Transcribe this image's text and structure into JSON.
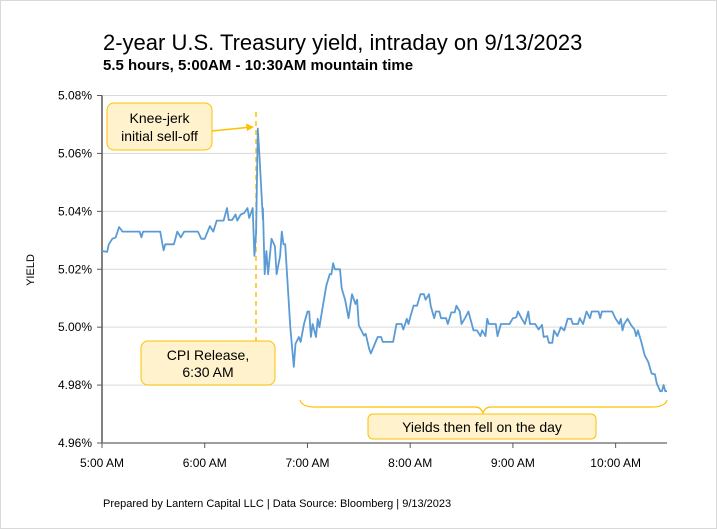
{
  "chart_data": {
    "type": "line",
    "title": "2-year U.S. Treasury yield, intraday on 9/13/2023",
    "subtitle": "5.5 hours, 5:00AM - 10:30AM mountain time",
    "ylabel": "YIELD",
    "xlabel": "",
    "ylim": [
      4.96,
      5.08
    ],
    "xlim": [
      "5:00",
      "10:30"
    ],
    "grid": true,
    "yticks": [
      "4.96%",
      "4.98%",
      "5.00%",
      "5.02%",
      "5.04%",
      "5.06%",
      "5.08%"
    ],
    "xticks": [
      "5:00 AM",
      "6:00 AM",
      "7:00 AM",
      "8:00 AM",
      "9:00 AM",
      "10:00 AM"
    ],
    "line_color": "#5b9bd5",
    "annotation_color": "#ffc000",
    "annotation_fill": "#fff2cc",
    "annotations": {
      "knee_jerk": [
        "Knee-jerk",
        "initial sell-off"
      ],
      "cpi_release": [
        "CPI Release,",
        "6:30 AM"
      ],
      "fell": "Yields then fell on the day"
    },
    "footer": "Prepared by Lantern Capital LLC | Data Source: Bloomberg | 9/13/2023",
    "series": [
      {
        "x": [
          "5:00",
          "5:03",
          "5:04",
          "5:06",
          "5:08",
          "5:10",
          "5:12",
          "5:22",
          "5:23",
          "5:24",
          "5:34",
          "5:36",
          "5:37",
          "5:42",
          "5:44",
          "5:46",
          "5:48",
          "5:56",
          "5:58",
          "6:00",
          "6:03",
          "6:05",
          "6:07",
          "6:08",
          "6:11",
          "6:13",
          "6:14",
          "6:16",
          "6:18",
          "6:19",
          "6:21",
          "6:23",
          "6:25",
          "6:26",
          "6:28",
          "6:29",
          "6:30",
          "6:31",
          "6:32",
          "6:34",
          "6:34",
          "6:35",
          "6:36",
          "6:37",
          "6:39",
          "6:41",
          "6:42",
          "6:44",
          "6:45",
          "6:46",
          "6:47",
          "6:50",
          "6:52",
          "6:53",
          "6:55",
          "6:56",
          "6:58",
          "7:00",
          "7:01",
          "7:02",
          "7:03",
          "7:05",
          "7:06",
          "7:07",
          "7:09",
          "7:11",
          "7:13",
          "7:14",
          "7:15",
          "7:16",
          "7:19",
          "7:20",
          "7:22",
          "7:24",
          "7:26",
          "7:28",
          "7:29",
          "7:30",
          "7:33",
          "7:34",
          "7:36",
          "7:37",
          "7:39",
          "7:41",
          "7:43",
          "7:44",
          "7:50",
          "7:52",
          "7:55",
          "7:56",
          "7:58",
          "7:59",
          "8:00",
          "8:02",
          "8:04",
          "8:06",
          "8:08",
          "8:09",
          "8:11",
          "8:12",
          "8:14",
          "8:15",
          "8:17",
          "8:18",
          "8:21",
          "8:22",
          "8:24",
          "8:26",
          "8:27",
          "8:29",
          "8:30",
          "8:32",
          "8:34",
          "8:36",
          "8:37",
          "8:39",
          "8:41",
          "8:42",
          "8:44",
          "8:45",
          "8:46",
          "8:50",
          "8:51",
          "8:53",
          "8:58",
          "9:00",
          "9:02",
          "9:03",
          "9:05",
          "9:07",
          "9:09",
          "9:10",
          "9:13",
          "9:15",
          "9:17",
          "9:18",
          "9:20",
          "9:21",
          "9:23",
          "9:24",
          "9:26",
          "9:28",
          "9:30",
          "9:32",
          "9:34",
          "9:35",
          "9:38",
          "9:39",
          "9:41",
          "9:43",
          "9:45",
          "9:46",
          "9:50",
          "9:51",
          "9:52",
          "9:58",
          "10:00",
          "10:02",
          "10:03",
          "10:04",
          "10:05",
          "10:07",
          "10:09",
          "10:11",
          "10:12",
          "10:13",
          "10:15",
          "10:17",
          "10:19",
          "10:21",
          "10:23",
          "10:24",
          "10:26",
          "10:27",
          "10:28",
          "10:29",
          "10:30"
        ],
        "y": [
          5.0263,
          5.026,
          5.0286,
          5.0305,
          5.031,
          5.0346,
          5.033,
          5.033,
          5.031,
          5.033,
          5.033,
          5.0265,
          5.0286,
          5.0286,
          5.033,
          5.031,
          5.033,
          5.033,
          5.0305,
          5.0305,
          5.0349,
          5.033,
          5.0368,
          5.0368,
          5.0368,
          5.0411,
          5.037,
          5.037,
          5.0389,
          5.0368,
          5.0389,
          5.0394,
          5.0411,
          5.0377,
          5.0411,
          5.0246,
          5.0326,
          5.0686,
          5.0589,
          5.0371,
          5.0411,
          5.0183,
          5.0263,
          5.0183,
          5.0305,
          5.028,
          5.0183,
          5.0246,
          5.033,
          5.0286,
          5.0286,
          5.0,
          4.9863,
          4.9943,
          4.9966,
          4.9949,
          5.0011,
          5.0054,
          5.0054,
          4.9966,
          5.0011,
          4.9966,
          5.0029,
          5.0,
          5.0074,
          5.0143,
          5.0183,
          5.0183,
          5.0221,
          5.02,
          5.02,
          5.0134,
          5.0095,
          5.0031,
          5.0114,
          5.008,
          5.0095,
          5.0006,
          4.9971,
          4.9977,
          4.9926,
          4.9909,
          4.9937,
          4.9966,
          4.9966,
          4.9949,
          4.9949,
          5.0011,
          5.0011,
          4.9992,
          5.0029,
          5.0011,
          5.0034,
          5.0074,
          5.0074,
          5.0114,
          5.0114,
          5.0095,
          5.0114,
          5.0074,
          5.0031,
          5.0054,
          5.0054,
          5.0031,
          5.0031,
          5.0011,
          5.0051,
          5.0051,
          5.0074,
          5.0054,
          5.0011,
          5.0031,
          5.0054,
          5.0011,
          4.9989,
          4.9989,
          4.9969,
          4.9989,
          4.9969,
          5.0029,
          5.0011,
          5.0011,
          4.9969,
          5.0011,
          5.0011,
          5.0031,
          5.0034,
          5.0054,
          5.0031,
          5.0011,
          5.0054,
          5.0011,
          5.0011,
          4.9992,
          5.0008,
          4.9966,
          4.9969,
          4.9946,
          4.9946,
          4.9989,
          4.9969,
          5.0,
          4.9989,
          5.0029,
          5.0029,
          5.0011,
          5.0011,
          5.0031,
          5.0011,
          5.0054,
          5.0031,
          5.0054,
          5.0054,
          5.0031,
          5.0054,
          5.0054,
          5.0029,
          5.0011,
          5.0029,
          4.9989,
          5.0011,
          5.0029,
          5.0008,
          4.9992,
          4.9969,
          4.9989,
          4.9949,
          4.9903,
          4.988,
          4.984,
          4.9837,
          4.9806,
          4.9779,
          4.9779,
          4.98,
          4.9779,
          4.9779
        ]
      }
    ]
  }
}
